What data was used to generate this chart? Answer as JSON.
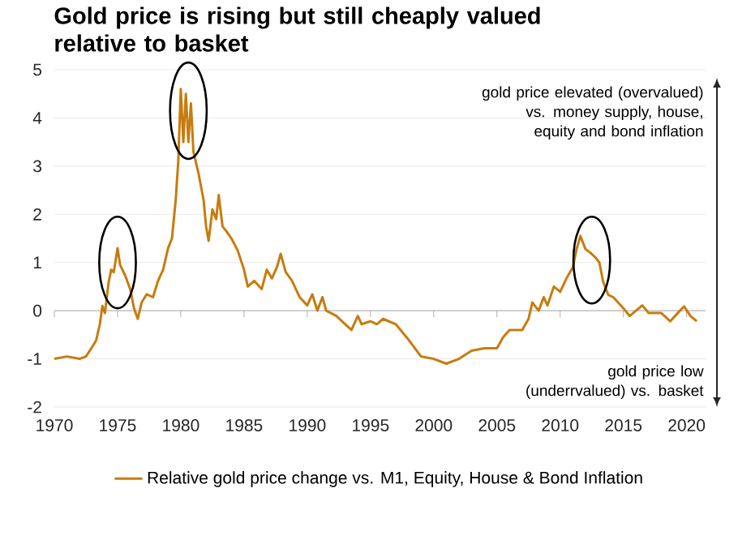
{
  "chart_data": {
    "type": "line",
    "title": "Gold price is rising but still cheaply valued relative to basket",
    "x": [
      1970,
      1971,
      1972,
      1972.5,
      1973,
      1973.3,
      1973.6,
      1973.8,
      1974,
      1974.3,
      1974.5,
      1974.7,
      1975,
      1975.2,
      1975.6,
      1976,
      1976.3,
      1976.6,
      1976.9,
      1977.3,
      1977.8,
      1978.2,
      1978.6,
      1979,
      1979.3,
      1979.6,
      1979.8,
      1980,
      1980.2,
      1980.4,
      1980.6,
      1980.8,
      1981,
      1981.4,
      1981.8,
      1982,
      1982.2,
      1982.5,
      1982.8,
      1983,
      1983.3,
      1983.6,
      1984,
      1984.5,
      1985,
      1985.3,
      1985.8,
      1986.4,
      1986.8,
      1987.2,
      1987.6,
      1987.9,
      1988.3,
      1988.8,
      1989.4,
      1990,
      1990.4,
      1990.8,
      1991.2,
      1991.5,
      1992.3,
      1993,
      1993.5,
      1994,
      1994.3,
      1995,
      1995.5,
      1996,
      1997,
      1998,
      1999,
      2000,
      2001,
      2002,
      2003,
      2004,
      2005,
      2005.5,
      2006,
      2007,
      2007.5,
      2007.8,
      2008.3,
      2008.7,
      2009,
      2009.5,
      2010,
      2010.5,
      2011,
      2011.3,
      2011.6,
      2012,
      2012.4,
      2012.8,
      2013.1,
      2013.4,
      2013.8,
      2014.2,
      2015,
      2015.5,
      2016,
      2016.5,
      2017,
      2018,
      2018.7,
      2019.3,
      2019.8,
      2020.3,
      2020.8
    ],
    "series": [
      {
        "name": "Relative gold price change vs. M1, Equity, House & Bond Inflation",
        "color": "#c77c0e",
        "values": [
          -1.0,
          -0.95,
          -1.0,
          -0.95,
          -0.75,
          -0.62,
          -0.28,
          0.1,
          -0.05,
          0.6,
          0.85,
          0.8,
          1.3,
          0.95,
          0.73,
          0.45,
          0.05,
          -0.17,
          0.17,
          0.34,
          0.28,
          0.62,
          0.85,
          1.3,
          1.5,
          2.3,
          3.1,
          4.6,
          3.5,
          4.5,
          3.5,
          4.3,
          3.3,
          2.85,
          2.3,
          1.75,
          1.45,
          2.1,
          1.9,
          2.4,
          1.75,
          1.65,
          1.5,
          1.25,
          0.85,
          0.5,
          0.62,
          0.45,
          0.85,
          0.67,
          0.9,
          1.18,
          0.8,
          0.62,
          0.28,
          0.11,
          0.34,
          0.0,
          0.28,
          0.0,
          -0.11,
          -0.28,
          -0.4,
          -0.11,
          -0.28,
          -0.22,
          -0.28,
          -0.17,
          -0.28,
          -0.6,
          -0.95,
          -1.0,
          -1.1,
          -1.0,
          -0.83,
          -0.78,
          -0.78,
          -0.55,
          -0.4,
          -0.4,
          -0.17,
          0.17,
          0.0,
          0.28,
          0.11,
          0.5,
          0.39,
          0.67,
          0.9,
          1.28,
          1.55,
          1.28,
          1.2,
          1.1,
          1.0,
          0.6,
          0.33,
          0.28,
          0.05,
          -0.11,
          0.0,
          0.11,
          -0.05,
          -0.05,
          -0.22,
          -0.05,
          0.09,
          -0.11,
          -0.22
        ]
      }
    ],
    "xlim": [
      1970,
      2021.5
    ],
    "xticks": [
      1970,
      1975,
      1980,
      1985,
      1990,
      1995,
      2000,
      2005,
      2010,
      2015,
      2020
    ],
    "ylim": [
      -2,
      5
    ],
    "yticks": [
      -2,
      -1,
      0,
      1,
      2,
      3,
      4,
      5
    ],
    "grid": "y",
    "legend": "bottom",
    "marker": "none",
    "line_style": "solid",
    "annotations": [
      "gold price elevated (overvalued) vs. money supply, house, equity and bond inflation",
      "gold price low (underrvalued) vs. basket"
    ]
  }
}
